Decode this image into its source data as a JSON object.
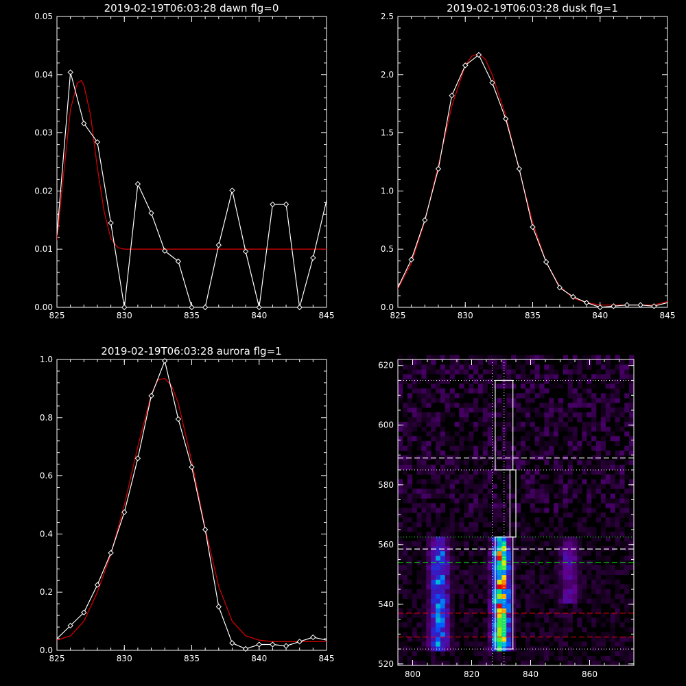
{
  "colors": {
    "background": "#000000",
    "axes": "#ffffff",
    "data_line": "#ffffff",
    "fit_line": "#d00000",
    "green_line": "#00ff00",
    "red_dashed": "#ff0000"
  },
  "chart_data": [
    {
      "type": "line",
      "title": "2019-02-19T06:03:28 dawn flg=0",
      "xlim": [
        825,
        845
      ],
      "ylim": [
        0,
        0.05
      ],
      "xticks": [
        825,
        830,
        835,
        840,
        845
      ],
      "yticks": [
        "0.00",
        "0.01",
        "0.02",
        "0.03",
        "0.04",
        "0.05"
      ],
      "ytick_values": [
        0,
        0.01,
        0.02,
        0.03,
        0.04,
        0.05
      ],
      "series": [
        {
          "role": "data",
          "markers": "diamond",
          "x": [
            825,
            826,
            827,
            828,
            829,
            830,
            831,
            832,
            833,
            834,
            835,
            836,
            837,
            838,
            839,
            840,
            841,
            842,
            843,
            844,
            845
          ],
          "y": [
            0.0125,
            0.0404,
            0.0316,
            0.0284,
            0.0145,
            0.0,
            0.0212,
            0.0162,
            0.0097,
            0.0079,
            0.0,
            0.0,
            0.0107,
            0.0201,
            0.0096,
            0.0,
            0.0177,
            0.0177,
            0.0,
            0.0085,
            0.0184
          ]
        },
        {
          "role": "fit",
          "x": [
            825,
            825.5,
            826,
            826.5,
            826.8,
            827,
            827.5,
            828,
            828.5,
            829,
            829.5,
            830,
            832,
            835,
            840,
            845
          ],
          "y": [
            0.0115,
            0.023,
            0.034,
            0.0385,
            0.039,
            0.0382,
            0.033,
            0.024,
            0.0165,
            0.0118,
            0.0103,
            0.01,
            0.01,
            0.01,
            0.01,
            0.01
          ]
        }
      ]
    },
    {
      "type": "line",
      "title": "2019-02-19T06:03:28 dusk flg=1",
      "xlim": [
        825,
        845
      ],
      "ylim": [
        0,
        2.5
      ],
      "xticks": [
        825,
        830,
        835,
        840,
        845
      ],
      "yticks": [
        "0.0",
        "0.5",
        "1.0",
        "1.5",
        "2.0",
        "2.5"
      ],
      "ytick_values": [
        0,
        0.5,
        1.0,
        1.5,
        2.0,
        2.5
      ],
      "series": [
        {
          "role": "data",
          "markers": "diamond",
          "x": [
            825,
            826,
            827,
            828,
            829,
            830,
            831,
            832,
            833,
            834,
            835,
            836,
            837,
            838,
            839,
            840,
            841,
            842,
            843,
            844,
            845
          ],
          "y": [
            0.17,
            0.41,
            0.75,
            1.19,
            1.82,
            2.08,
            2.17,
            1.93,
            1.62,
            1.19,
            0.69,
            0.39,
            0.17,
            0.09,
            0.04,
            0.0,
            0.01,
            0.02,
            0.02,
            0.01,
            0.04
          ]
        },
        {
          "role": "fit",
          "x": [
            825,
            826,
            827,
            828,
            829,
            830,
            830.5,
            831,
            831.5,
            832,
            833,
            834,
            835,
            836,
            837,
            838,
            839,
            840,
            841,
            842,
            843,
            844,
            845
          ],
          "y": [
            0.16,
            0.38,
            0.74,
            1.22,
            1.73,
            2.08,
            2.16,
            2.18,
            2.13,
            2.0,
            1.65,
            1.18,
            0.73,
            0.39,
            0.18,
            0.08,
            0.04,
            0.02,
            0.02,
            0.02,
            0.02,
            0.02,
            0.05
          ]
        }
      ]
    },
    {
      "type": "line",
      "title": "2019-02-19T06:03:28 aurora flg=1",
      "xlim": [
        825,
        845
      ],
      "ylim": [
        0,
        1.0
      ],
      "xticks": [
        825,
        830,
        835,
        840,
        845
      ],
      "yticks": [
        "0.0",
        "0.2",
        "0.4",
        "0.6",
        "0.8",
        "1.0"
      ],
      "ytick_values": [
        0,
        0.2,
        0.4,
        0.6,
        0.8,
        1.0
      ],
      "series": [
        {
          "role": "data",
          "markers": "diamond",
          "x": [
            825,
            826,
            827,
            828,
            829,
            830,
            831,
            832,
            833,
            834,
            835,
            836,
            837,
            838,
            839,
            840,
            841,
            842,
            843,
            844,
            845
          ],
          "y": [
            0.04,
            0.085,
            0.13,
            0.225,
            0.335,
            0.475,
            0.66,
            0.875,
            0.995,
            0.795,
            0.63,
            0.415,
            0.15,
            0.025,
            0.005,
            0.02,
            0.02,
            0.015,
            0.03,
            0.045,
            0.035
          ]
        },
        {
          "role": "fit",
          "x": [
            825,
            826,
            827,
            828,
            829,
            830,
            831,
            832,
            832.5,
            833,
            833.5,
            834,
            835,
            836,
            837,
            838,
            839,
            840,
            841,
            842,
            843,
            844,
            845
          ],
          "y": [
            0.035,
            0.05,
            0.1,
            0.2,
            0.33,
            0.5,
            0.7,
            0.88,
            0.93,
            0.935,
            0.91,
            0.85,
            0.65,
            0.42,
            0.22,
            0.1,
            0.05,
            0.035,
            0.03,
            0.03,
            0.03,
            0.03,
            0.03
          ]
        }
      ]
    },
    {
      "type": "heatmap",
      "title": "",
      "xlim": [
        795,
        875
      ],
      "ylim": [
        519.5,
        622
      ],
      "xticks": [
        800,
        820,
        840,
        860
      ],
      "yticks": [
        520,
        540,
        560,
        580,
        600,
        620
      ],
      "colorscale": "rainbow",
      "bands": [
        {
          "x_center": 809,
          "x_width": 3.5,
          "y_range": [
            525,
            562
          ],
          "peak": 0.55
        },
        {
          "x_center": 830,
          "x_width": 3.0,
          "y_range": [
            525,
            562
          ],
          "peak": 1.0
        },
        {
          "x_center": 853,
          "x_width": 3.5,
          "y_range": [
            542,
            562
          ],
          "peak": 0.3
        }
      ],
      "dotted_vertical": [
        827,
        831
      ],
      "dotted_horizontal": [
        615,
        585,
        525
      ],
      "green_dotted": [
        562.5
      ],
      "green_dashed": [
        554
      ],
      "white_dashed": [
        589,
        558.5
      ],
      "red_dashed": [
        537,
        529
      ],
      "white_boxes": [
        {
          "x": [
            828,
            834
          ],
          "y": [
            585,
            615
          ]
        },
        {
          "x": [
            833,
            835
          ],
          "y": [
            562.5,
            585
          ]
        },
        {
          "x": [
            828,
            834
          ],
          "y": [
            525,
            562.5
          ]
        }
      ]
    }
  ]
}
